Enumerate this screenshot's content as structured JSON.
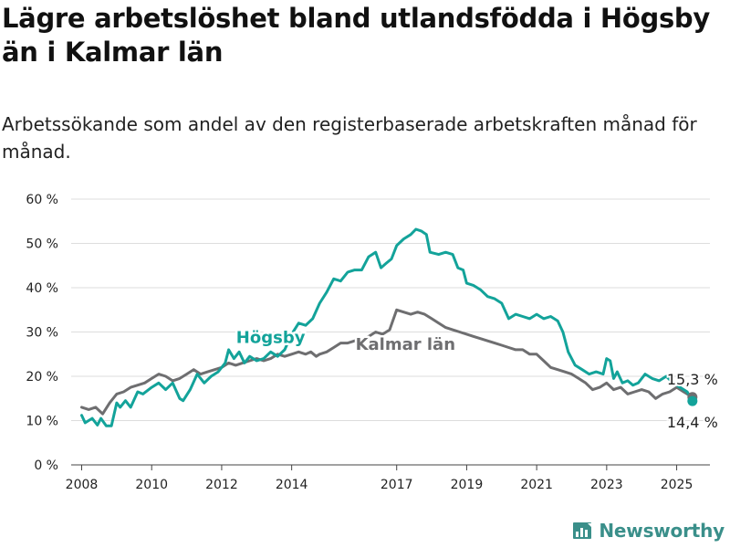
{
  "title": "Lägre arbetslöshet bland utlandsfödda i Högsby än i Kalmar län",
  "subtitle": "Arbetssökande som andel av den registerbaserade arbetskraften månad för månad.",
  "brand": "Newsworthy",
  "colors": {
    "hogsby": "#13a39a",
    "kalmar": "#6e6e70",
    "grid": "#dddddd",
    "text": "#222222",
    "brand": "#3a8f8a"
  },
  "chart_data": {
    "type": "line",
    "xlim": [
      2007.7,
      2025.95
    ],
    "ylim": [
      0,
      60
    ],
    "yticks": [
      0,
      10,
      20,
      30,
      40,
      50,
      60
    ],
    "ytick_labels": [
      "0 %",
      "10 %",
      "20 %",
      "30 %",
      "40 %",
      "50 %",
      "60 %"
    ],
    "xticks": [
      2008,
      2010,
      2012,
      2014,
      2017,
      2019,
      2021,
      2023,
      2025
    ],
    "xtick_labels": [
      "2008",
      "2010",
      "2012",
      "2014",
      "2017",
      "2019",
      "2021",
      "2023",
      "2025"
    ],
    "grid": true,
    "series": [
      {
        "name": "Högsby",
        "color": "#13a39a",
        "label_at": [
          2013.4,
          27.5
        ],
        "end_label": "14,4 %",
        "end_value": 14.4,
        "points": [
          [
            2008.0,
            11.2
          ],
          [
            2008.1,
            9.5
          ],
          [
            2008.3,
            10.5
          ],
          [
            2008.45,
            9.0
          ],
          [
            2008.55,
            10.5
          ],
          [
            2008.7,
            8.8
          ],
          [
            2008.85,
            8.8
          ],
          [
            2009.0,
            14.0
          ],
          [
            2009.1,
            13.0
          ],
          [
            2009.25,
            14.5
          ],
          [
            2009.4,
            13.0
          ],
          [
            2009.6,
            16.5
          ],
          [
            2009.75,
            16.0
          ],
          [
            2010.0,
            17.5
          ],
          [
            2010.2,
            18.5
          ],
          [
            2010.4,
            17.0
          ],
          [
            2010.6,
            18.5
          ],
          [
            2010.8,
            15.0
          ],
          [
            2010.9,
            14.5
          ],
          [
            2011.1,
            17.0
          ],
          [
            2011.3,
            20.5
          ],
          [
            2011.5,
            18.5
          ],
          [
            2011.7,
            20.0
          ],
          [
            2011.9,
            21.0
          ],
          [
            2012.1,
            23.0
          ],
          [
            2012.2,
            26.0
          ],
          [
            2012.35,
            24.0
          ],
          [
            2012.5,
            25.5
          ],
          [
            2012.65,
            23.0
          ],
          [
            2012.8,
            24.5
          ],
          [
            2013.0,
            23.5
          ],
          [
            2013.2,
            24.0
          ],
          [
            2013.4,
            25.5
          ],
          [
            2013.6,
            24.5
          ],
          [
            2013.8,
            26.0
          ],
          [
            2014.0,
            29.5
          ],
          [
            2014.2,
            32.0
          ],
          [
            2014.4,
            31.5
          ],
          [
            2014.6,
            33.0
          ],
          [
            2014.8,
            36.5
          ],
          [
            2015.0,
            39.0
          ],
          [
            2015.2,
            42.0
          ],
          [
            2015.4,
            41.5
          ],
          [
            2015.6,
            43.5
          ],
          [
            2015.8,
            44.0
          ],
          [
            2016.0,
            44.0
          ],
          [
            2016.2,
            47.0
          ],
          [
            2016.4,
            48.0
          ],
          [
            2016.55,
            44.5
          ],
          [
            2016.7,
            45.5
          ],
          [
            2016.85,
            46.5
          ],
          [
            2017.0,
            49.5
          ],
          [
            2017.2,
            51.0
          ],
          [
            2017.4,
            52.0
          ],
          [
            2017.55,
            53.2
          ],
          [
            2017.7,
            52.8
          ],
          [
            2017.85,
            52.0
          ],
          [
            2017.95,
            48.0
          ],
          [
            2018.2,
            47.5
          ],
          [
            2018.4,
            48.0
          ],
          [
            2018.6,
            47.5
          ],
          [
            2018.75,
            44.5
          ],
          [
            2018.9,
            44.0
          ],
          [
            2019.0,
            41.0
          ],
          [
            2019.2,
            40.5
          ],
          [
            2019.4,
            39.5
          ],
          [
            2019.6,
            38.0
          ],
          [
            2019.8,
            37.5
          ],
          [
            2020.0,
            36.5
          ],
          [
            2020.2,
            33.0
          ],
          [
            2020.4,
            34.0
          ],
          [
            2020.6,
            33.5
          ],
          [
            2020.8,
            33.0
          ],
          [
            2021.0,
            34.0
          ],
          [
            2021.2,
            33.0
          ],
          [
            2021.4,
            33.5
          ],
          [
            2021.6,
            32.5
          ],
          [
            2021.75,
            30.0
          ],
          [
            2021.9,
            25.5
          ],
          [
            2022.1,
            22.5
          ],
          [
            2022.3,
            21.5
          ],
          [
            2022.5,
            20.5
          ],
          [
            2022.7,
            21.0
          ],
          [
            2022.9,
            20.5
          ],
          [
            2023.0,
            24.0
          ],
          [
            2023.1,
            23.5
          ],
          [
            2023.2,
            19.5
          ],
          [
            2023.3,
            21.0
          ],
          [
            2023.45,
            18.5
          ],
          [
            2023.6,
            19.0
          ],
          [
            2023.75,
            18.0
          ],
          [
            2023.9,
            18.5
          ],
          [
            2024.1,
            20.5
          ],
          [
            2024.3,
            19.5
          ],
          [
            2024.5,
            19.0
          ],
          [
            2024.7,
            20.0
          ],
          [
            2024.9,
            18.5
          ],
          [
            2025.1,
            17.5
          ],
          [
            2025.3,
            16.5
          ],
          [
            2025.45,
            14.4
          ]
        ]
      },
      {
        "name": "Kalmar län",
        "color": "#6e6e70",
        "label_at": [
          2017.25,
          26.0
        ],
        "end_label": "15,3 %",
        "end_value": 15.3,
        "points": [
          [
            2008.0,
            13.0
          ],
          [
            2008.2,
            12.5
          ],
          [
            2008.4,
            13.0
          ],
          [
            2008.6,
            11.5
          ],
          [
            2008.8,
            14.0
          ],
          [
            2009.0,
            16.0
          ],
          [
            2009.2,
            16.5
          ],
          [
            2009.4,
            17.5
          ],
          [
            2009.6,
            18.0
          ],
          [
            2009.8,
            18.5
          ],
          [
            2010.0,
            19.5
          ],
          [
            2010.2,
            20.5
          ],
          [
            2010.4,
            20.0
          ],
          [
            2010.6,
            19.0
          ],
          [
            2010.8,
            19.5
          ],
          [
            2011.0,
            20.5
          ],
          [
            2011.2,
            21.5
          ],
          [
            2011.4,
            20.5
          ],
          [
            2011.6,
            21.0
          ],
          [
            2011.8,
            21.5
          ],
          [
            2012.0,
            22.0
          ],
          [
            2012.2,
            23.0
          ],
          [
            2012.4,
            22.5
          ],
          [
            2012.6,
            23.0
          ],
          [
            2012.8,
            23.5
          ],
          [
            2013.0,
            24.0
          ],
          [
            2013.2,
            23.5
          ],
          [
            2013.4,
            24.0
          ],
          [
            2013.6,
            25.0
          ],
          [
            2013.8,
            24.5
          ],
          [
            2014.0,
            25.0
          ],
          [
            2014.2,
            25.5
          ],
          [
            2014.4,
            25.0
          ],
          [
            2014.55,
            25.5
          ],
          [
            2014.7,
            24.5
          ],
          [
            2014.8,
            25.0
          ],
          [
            2015.0,
            25.5
          ],
          [
            2015.2,
            26.5
          ],
          [
            2015.4,
            27.5
          ],
          [
            2015.6,
            27.5
          ],
          [
            2015.8,
            28.0
          ],
          [
            2016.0,
            28.5
          ],
          [
            2016.2,
            29.0
          ],
          [
            2016.4,
            30.0
          ],
          [
            2016.6,
            29.5
          ],
          [
            2016.8,
            30.5
          ],
          [
            2017.0,
            35.0
          ],
          [
            2017.2,
            34.5
          ],
          [
            2017.4,
            34.0
          ],
          [
            2017.6,
            34.5
          ],
          [
            2017.8,
            34.0
          ],
          [
            2018.0,
            33.0
          ],
          [
            2018.2,
            32.0
          ],
          [
            2018.4,
            31.0
          ],
          [
            2018.6,
            30.5
          ],
          [
            2018.8,
            30.0
          ],
          [
            2019.0,
            29.5
          ],
          [
            2019.2,
            29.0
          ],
          [
            2019.4,
            28.5
          ],
          [
            2019.6,
            28.0
          ],
          [
            2019.8,
            27.5
          ],
          [
            2020.0,
            27.0
          ],
          [
            2020.2,
            26.5
          ],
          [
            2020.4,
            26.0
          ],
          [
            2020.6,
            26.0
          ],
          [
            2020.8,
            25.0
          ],
          [
            2021.0,
            25.0
          ],
          [
            2021.2,
            23.5
          ],
          [
            2021.4,
            22.0
          ],
          [
            2021.6,
            21.5
          ],
          [
            2021.8,
            21.0
          ],
          [
            2022.0,
            20.5
          ],
          [
            2022.2,
            19.5
          ],
          [
            2022.4,
            18.5
          ],
          [
            2022.6,
            17.0
          ],
          [
            2022.8,
            17.5
          ],
          [
            2023.0,
            18.5
          ],
          [
            2023.2,
            17.0
          ],
          [
            2023.4,
            17.5
          ],
          [
            2023.6,
            16.0
          ],
          [
            2023.8,
            16.5
          ],
          [
            2024.0,
            17.0
          ],
          [
            2024.2,
            16.5
          ],
          [
            2024.4,
            15.0
          ],
          [
            2024.6,
            16.0
          ],
          [
            2024.8,
            16.5
          ],
          [
            2025.0,
            17.5
          ],
          [
            2025.2,
            16.5
          ],
          [
            2025.45,
            15.3
          ]
        ]
      }
    ]
  }
}
